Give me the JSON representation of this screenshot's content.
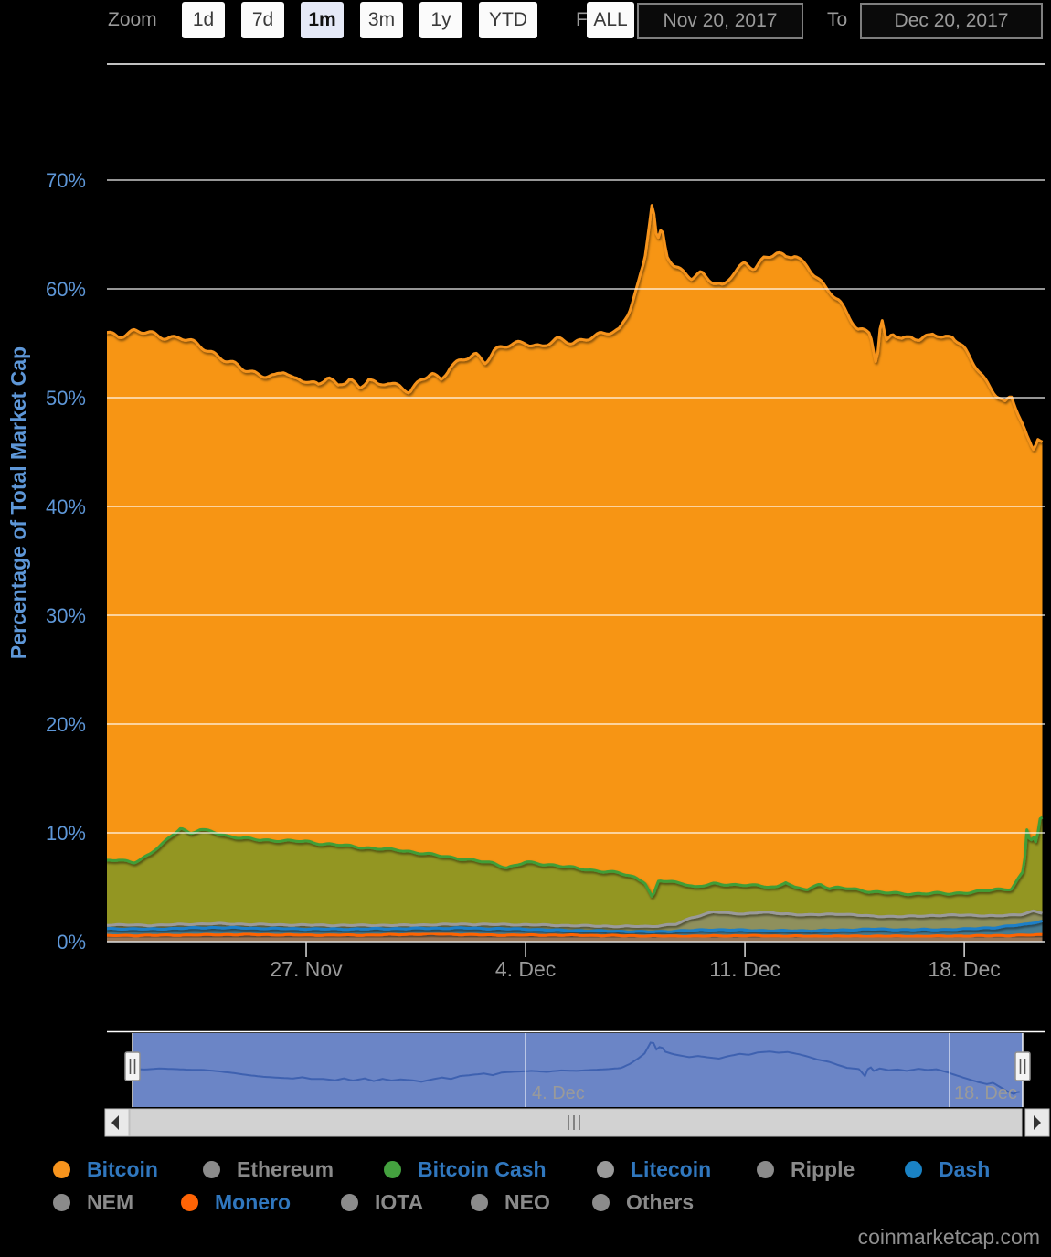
{
  "toolbar": {
    "zoom_label": "Zoom",
    "buttons": [
      {
        "label": "1d",
        "active": false
      },
      {
        "label": "7d",
        "active": false
      },
      {
        "label": "1m",
        "active": true
      },
      {
        "label": "3m",
        "active": false
      },
      {
        "label": "1y",
        "active": false
      },
      {
        "label": "YTD",
        "active": false
      },
      {
        "label": "ALL",
        "active": false
      }
    ],
    "from_label": "From",
    "to_label": "To",
    "from_value": "Nov 20, 2017",
    "to_value": "Dec 20, 2017"
  },
  "footer": {
    "watermark": "coinmarketcap.com"
  },
  "legend": {
    "active_text_color": "#3077be",
    "inactive_text_color": "#8a8a8a",
    "rows": [
      [
        {
          "label": "Bitcoin",
          "color": "#f7941d",
          "active": true
        },
        {
          "label": "Ethereum",
          "color": "#8b8b8b",
          "active": false
        },
        {
          "label": "Bitcoin Cash",
          "color": "#44a13f",
          "active": true
        },
        {
          "label": "Litecoin",
          "color": "#9a9a9a",
          "active": true
        },
        {
          "label": "Ripple",
          "color": "#8b8b8b",
          "active": false
        },
        {
          "label": "Dash",
          "color": "#1a82c4",
          "active": true
        }
      ],
      [
        {
          "label": "NEM",
          "color": "#8b8b8b",
          "active": false
        },
        {
          "label": "Monero",
          "color": "#ff6405",
          "active": true
        },
        {
          "label": "IOTA",
          "color": "#8b8b8b",
          "active": false
        },
        {
          "label": "NEO",
          "color": "#8b8b8b",
          "active": false
        },
        {
          "label": "Others",
          "color": "#8b8b8b",
          "active": false
        }
      ]
    ]
  },
  "chart_data": {
    "type": "area",
    "stacking": "stacked percentages of total market cap, visible series only",
    "title": "",
    "ylabel": "Percentage of Total Market Cap",
    "y_ticks": [
      {
        "value": 0,
        "label": "0%"
      },
      {
        "value": 10,
        "label": "10%"
      },
      {
        "value": 20,
        "label": "20%"
      },
      {
        "value": 30,
        "label": "30%"
      },
      {
        "value": 40,
        "label": "40%"
      },
      {
        "value": 50,
        "label": "50%"
      },
      {
        "value": 60,
        "label": "60%"
      },
      {
        "value": 70,
        "label": "70%"
      }
    ],
    "ylim": [
      0,
      80
    ],
    "x_range": [
      "Nov 20, 2017",
      "Dec 20, 2017"
    ],
    "x_ticks": [
      {
        "day": 7,
        "label": "27. Nov"
      },
      {
        "day": 14,
        "label": "4. Dec"
      },
      {
        "day": 21,
        "label": "11. Dec"
      },
      {
        "day": 28,
        "label": "18. Dec"
      }
    ],
    "hidden_series": [
      "Ethereum",
      "Ripple",
      "NEM",
      "IOTA",
      "NEO",
      "Others"
    ],
    "series_note": "points are [days since Nov 20 2017, cumulative stacked % at top edge of that band]",
    "series": [
      {
        "name": "Monero",
        "line_color": "#ff6405",
        "fill": "rgba(230,110,25,0.5)",
        "amp": 0.04,
        "stack_top": [
          [
            0.6,
            0.55
          ],
          [
            3,
            0.6
          ],
          [
            5,
            0.65
          ],
          [
            7,
            0.6
          ],
          [
            9,
            0.6
          ],
          [
            11,
            0.7
          ],
          [
            13,
            0.6
          ],
          [
            15,
            0.6
          ],
          [
            17,
            0.55
          ],
          [
            19,
            0.5
          ],
          [
            21,
            0.55
          ],
          [
            23,
            0.5
          ],
          [
            25,
            0.5
          ],
          [
            27,
            0.5
          ],
          [
            29,
            0.55
          ],
          [
            30.2,
            0.6
          ],
          [
            30.5,
            0.65
          ]
        ]
      },
      {
        "name": "Dash",
        "line_color": "#1a7fc9",
        "fill": "rgba(24,110,180,0.6)",
        "amp": 0.05,
        "stack_top": [
          [
            0.6,
            1.2
          ],
          [
            2,
            1.15
          ],
          [
            4,
            1.3
          ],
          [
            6,
            1.2
          ],
          [
            8,
            1.15
          ],
          [
            10,
            1.2
          ],
          [
            12,
            1.25
          ],
          [
            14,
            1.15
          ],
          [
            15,
            1.05
          ],
          [
            16,
            1.0
          ],
          [
            17,
            0.95
          ],
          [
            18,
            0.9
          ],
          [
            19,
            1.0
          ],
          [
            20,
            1.1
          ],
          [
            21,
            1.05
          ],
          [
            22,
            1.0
          ],
          [
            23,
            1.0
          ],
          [
            24,
            1.05
          ],
          [
            25,
            1.15
          ],
          [
            26,
            1.1
          ],
          [
            27,
            1.1
          ],
          [
            28,
            1.15
          ],
          [
            29,
            1.3
          ],
          [
            30,
            1.6
          ],
          [
            30.3,
            1.8
          ],
          [
            30.5,
            1.9
          ]
        ]
      },
      {
        "name": "Litecoin",
        "line_color": "#9a9a9a",
        "fill": "rgba(140,140,140,0.55)",
        "amp": 0.05,
        "stack_top": [
          [
            0.6,
            1.55
          ],
          [
            2,
            1.5
          ],
          [
            4,
            1.65
          ],
          [
            6,
            1.55
          ],
          [
            8,
            1.5
          ],
          [
            10,
            1.5
          ],
          [
            12,
            1.6
          ],
          [
            14,
            1.55
          ],
          [
            16,
            1.45
          ],
          [
            17,
            1.4
          ],
          [
            18,
            1.4
          ],
          [
            18.8,
            1.6
          ],
          [
            19.3,
            2.2
          ],
          [
            20,
            2.75
          ],
          [
            20.5,
            2.6
          ],
          [
            21,
            2.55
          ],
          [
            21.5,
            2.7
          ],
          [
            22,
            2.6
          ],
          [
            23,
            2.45
          ],
          [
            24,
            2.55
          ],
          [
            25,
            2.35
          ],
          [
            26,
            2.3
          ],
          [
            27,
            2.4
          ],
          [
            28,
            2.45
          ],
          [
            29,
            2.35
          ],
          [
            29.8,
            2.5
          ],
          [
            30.2,
            2.8
          ],
          [
            30.5,
            2.6
          ]
        ]
      },
      {
        "name": "Bitcoin Cash",
        "line_color": "#3f9e37",
        "fill": "rgba(80,152,44,0.6)",
        "amp": 0.1,
        "stack_top": [
          [
            0.6,
            7.4
          ],
          [
            1,
            7.5
          ],
          [
            1.5,
            7.3
          ],
          [
            2,
            8.0
          ],
          [
            2.5,
            9.2
          ],
          [
            3,
            10.5
          ],
          [
            3.3,
            9.9
          ],
          [
            3.6,
            10.3
          ],
          [
            4,
            10.1
          ],
          [
            4.5,
            9.7
          ],
          [
            5,
            9.5
          ],
          [
            5.5,
            9.35
          ],
          [
            6,
            9.3
          ],
          [
            6.5,
            9.25
          ],
          [
            7,
            9.2
          ],
          [
            7.5,
            9.0
          ],
          [
            8,
            8.9
          ],
          [
            8.5,
            8.75
          ],
          [
            9,
            8.6
          ],
          [
            9.5,
            8.5
          ],
          [
            10,
            8.4
          ],
          [
            10.5,
            8.2
          ],
          [
            11,
            8.0
          ],
          [
            11.5,
            7.8
          ],
          [
            12,
            7.6
          ],
          [
            12.5,
            7.4
          ],
          [
            13,
            7.2
          ],
          [
            13.4,
            6.8
          ],
          [
            13.7,
            7.0
          ],
          [
            14,
            7.3
          ],
          [
            14.5,
            7.15
          ],
          [
            15,
            7.0
          ],
          [
            15.5,
            6.8
          ],
          [
            16,
            6.6
          ],
          [
            16.5,
            6.45
          ],
          [
            17,
            6.3
          ],
          [
            17.5,
            5.9
          ],
          [
            17.8,
            5.5
          ],
          [
            18.05,
            4.0
          ],
          [
            18.25,
            5.6
          ],
          [
            18.6,
            5.5
          ],
          [
            19,
            5.4
          ],
          [
            19.4,
            5.0
          ],
          [
            20,
            5.3
          ],
          [
            20.5,
            5.25
          ],
          [
            21,
            5.2
          ],
          [
            21.5,
            5.1
          ],
          [
            22,
            5.0
          ],
          [
            22.3,
            5.5
          ],
          [
            22.6,
            4.9
          ],
          [
            23,
            4.8
          ],
          [
            23.4,
            5.3
          ],
          [
            23.7,
            4.9
          ],
          [
            24,
            4.95
          ],
          [
            24.5,
            4.8
          ],
          [
            25,
            4.6
          ],
          [
            25.5,
            4.5
          ],
          [
            26,
            4.4
          ],
          [
            26.5,
            4.4
          ],
          [
            27,
            4.45
          ],
          [
            27.5,
            4.4
          ],
          [
            28,
            4.5
          ],
          [
            28.5,
            4.6
          ],
          [
            29,
            4.8
          ],
          [
            29.5,
            4.85
          ],
          [
            29.9,
            6.5
          ],
          [
            30.0,
            10.3
          ],
          [
            30.1,
            9.2
          ],
          [
            30.2,
            9.6
          ],
          [
            30.3,
            9.0
          ],
          [
            30.45,
            11.8
          ],
          [
            30.5,
            11.3
          ]
        ]
      },
      {
        "name": "Bitcoin",
        "line_color": "#f7941d",
        "fill": "#f79514",
        "amp": 0.28,
        "stack_top": [
          [
            0.6,
            56.0
          ],
          [
            1,
            55.7
          ],
          [
            1.5,
            56.1
          ],
          [
            2,
            55.9
          ],
          [
            2.5,
            55.6
          ],
          [
            3,
            55.5
          ],
          [
            3.5,
            54.9
          ],
          [
            4,
            54.2
          ],
          [
            4.5,
            53.3
          ],
          [
            5,
            52.6
          ],
          [
            5.5,
            52.2
          ],
          [
            6,
            51.9
          ],
          [
            6.3,
            52.4
          ],
          [
            6.6,
            51.7
          ],
          [
            7,
            51.7
          ],
          [
            7.4,
            51.1
          ],
          [
            7.7,
            51.9
          ],
          [
            8,
            51.0
          ],
          [
            8.4,
            51.9
          ],
          [
            8.7,
            50.8
          ],
          [
            9,
            51.7
          ],
          [
            9.3,
            51.0
          ],
          [
            9.6,
            51.5
          ],
          [
            10,
            51.1
          ],
          [
            10.3,
            50.5
          ],
          [
            10.7,
            51.6
          ],
          [
            11,
            52.3
          ],
          [
            11.3,
            51.7
          ],
          [
            11.6,
            52.9
          ],
          [
            12,
            53.4
          ],
          [
            12.4,
            54.0
          ],
          [
            12.7,
            53.3
          ],
          [
            13,
            54.4
          ],
          [
            13.5,
            54.8
          ],
          [
            14,
            55.1
          ],
          [
            14.5,
            54.7
          ],
          [
            15,
            55.3
          ],
          [
            15.5,
            55.1
          ],
          [
            16,
            55.5
          ],
          [
            16.5,
            55.8
          ],
          [
            17,
            56.3
          ],
          [
            17.3,
            58.0
          ],
          [
            17.6,
            60.5
          ],
          [
            17.8,
            62.5
          ],
          [
            18.05,
            68.2
          ],
          [
            18.2,
            64.2
          ],
          [
            18.35,
            65.6
          ],
          [
            18.5,
            63.2
          ],
          [
            18.75,
            62.2
          ],
          [
            19,
            61.6
          ],
          [
            19.3,
            60.9
          ],
          [
            19.6,
            61.4
          ],
          [
            20,
            60.7
          ],
          [
            20.3,
            60.3
          ],
          [
            20.6,
            61.3
          ],
          [
            21,
            62.3
          ],
          [
            21.3,
            61.9
          ],
          [
            21.6,
            62.9
          ],
          [
            22,
            63.3
          ],
          [
            22.3,
            62.8
          ],
          [
            22.6,
            63.1
          ],
          [
            23,
            62.1
          ],
          [
            23.3,
            61.1
          ],
          [
            23.6,
            59.9
          ],
          [
            24,
            58.9
          ],
          [
            24.3,
            57.6
          ],
          [
            24.6,
            56.4
          ],
          [
            25,
            55.9
          ],
          [
            25.2,
            52.9
          ],
          [
            25.35,
            57.3
          ],
          [
            25.5,
            55.1
          ],
          [
            25.7,
            56.1
          ],
          [
            26,
            55.4
          ],
          [
            26.3,
            55.7
          ],
          [
            26.6,
            55.1
          ],
          [
            27,
            56.0
          ],
          [
            27.3,
            55.5
          ],
          [
            27.6,
            55.8
          ],
          [
            28,
            54.4
          ],
          [
            28.3,
            53.1
          ],
          [
            28.6,
            51.9
          ],
          [
            29,
            50.4
          ],
          [
            29.3,
            49.5
          ],
          [
            29.5,
            50.1
          ],
          [
            29.7,
            48.6
          ],
          [
            30,
            46.4
          ],
          [
            30.2,
            45.4
          ],
          [
            30.35,
            46.4
          ],
          [
            30.5,
            45.9
          ]
        ]
      }
    ],
    "navigator": {
      "mask_color": "#6b85c6",
      "line_color": "#3e61b0",
      "line_series": "Bitcoin",
      "labels": [
        {
          "label": "4. Dec"
        },
        {
          "label": "18. Dec"
        }
      ]
    }
  }
}
